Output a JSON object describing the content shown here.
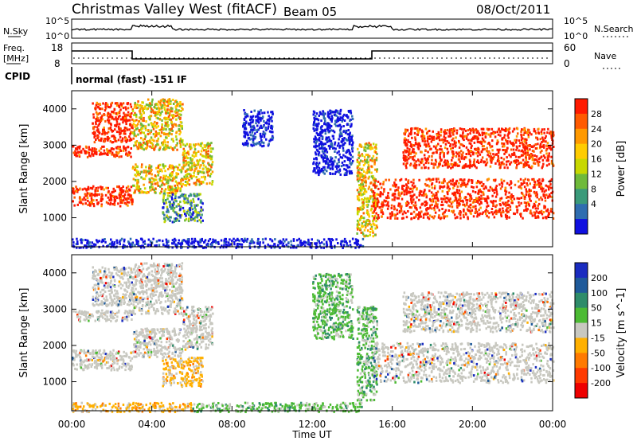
{
  "header": {
    "title": "Christmas Valley West (fitACF)",
    "beam": "Beam 05",
    "date": "08/Oct/2011"
  },
  "noise_panel": {
    "left_label": "N.Sky",
    "left_ticks": [
      "10^5",
      "10^0"
    ],
    "right_label": "N.Search",
    "right_ticks": [
      "10^5",
      "10^0"
    ]
  },
  "freq_panel": {
    "left_label_line1": "Freq.",
    "left_label_line2": "[MHz]",
    "left_ticks": [
      "18",
      "8"
    ],
    "right_label": "Nave",
    "right_ticks": [
      "60",
      "0"
    ]
  },
  "cpid_panel": {
    "label": "CPID",
    "mode_text": "normal (fast) -151 IF"
  },
  "x_axis": {
    "label": "Time UT",
    "ticks": [
      "00:00",
      "04:00",
      "08:00",
      "12:00",
      "16:00",
      "20:00",
      "00:00"
    ]
  },
  "chart_data": [
    {
      "type": "heatmap",
      "name": "power",
      "ylabel": "Slant Range [km]",
      "yticks": [
        "4000",
        "3000",
        "2000",
        "1000"
      ],
      "ylim": [
        200,
        4500
      ],
      "xlim": [
        "00:00",
        "24:00"
      ],
      "colorbar": {
        "label": "Power [dB]",
        "ticks": [
          "28",
          "24",
          "20",
          "16",
          "12",
          "8",
          "4"
        ],
        "colors": [
          "#ff1a00",
          "#ff5a00",
          "#ff9900",
          "#ffcc00",
          "#c8d800",
          "#6fba3a",
          "#3a9a7a",
          "#2f6db0",
          "#1010e0"
        ]
      },
      "regions": [
        {
          "t0": 0.0,
          "t1": 3.0,
          "r0": 1350,
          "r1": 1900,
          "level": "high"
        },
        {
          "t0": 0.0,
          "t1": 3.0,
          "r0": 2700,
          "r1": 3000,
          "level": "high"
        },
        {
          "t0": 1.0,
          "t1": 3.0,
          "r0": 3100,
          "r1": 4200,
          "level": "high"
        },
        {
          "t0": 3.0,
          "t1": 5.5,
          "r0": 1700,
          "r1": 2500,
          "level": "mid"
        },
        {
          "t0": 3.0,
          "t1": 5.5,
          "r0": 2900,
          "r1": 4300,
          "level": "mid"
        },
        {
          "t0": 4.5,
          "t1": 6.5,
          "r0": 900,
          "r1": 1700,
          "level": "low"
        },
        {
          "t0": 5.5,
          "t1": 7.0,
          "r0": 1900,
          "r1": 3100,
          "level": "mid"
        },
        {
          "t0": 8.5,
          "t1": 10.0,
          "r0": 3000,
          "r1": 4000,
          "level": "vlow"
        },
        {
          "t0": 12.0,
          "t1": 14.0,
          "r0": 2200,
          "r1": 4000,
          "level": "vlow"
        },
        {
          "t0": 0.0,
          "t1": 14.5,
          "r0": 200,
          "r1": 450,
          "level": "vlow"
        },
        {
          "t0": 14.2,
          "t1": 15.2,
          "r0": 500,
          "r1": 3100,
          "level": "mid"
        },
        {
          "t0": 15.0,
          "t1": 24.0,
          "r0": 1000,
          "r1": 2100,
          "level": "high"
        },
        {
          "t0": 16.5,
          "t1": 24.0,
          "r0": 2400,
          "r1": 3500,
          "level": "high"
        }
      ]
    },
    {
      "type": "heatmap",
      "name": "velocity",
      "ylabel": "Slant Range [km]",
      "yticks": [
        "4000",
        "3000",
        "2000",
        "1000"
      ],
      "ylim": [
        200,
        4500
      ],
      "xlim": [
        "00:00",
        "24:00"
      ],
      "colorbar": {
        "label": "Velocity [m s^-1]",
        "ticks": [
          "200",
          "100",
          "50",
          "15",
          "-15",
          "-50",
          "-100",
          "-200"
        ],
        "colors": [
          "#1a2cc0",
          "#1f5a9a",
          "#2e8c6a",
          "#4cbb34",
          "#c8c8c0",
          "#ffb000",
          "#ff7a00",
          "#ff3a00",
          "#ee0000"
        ]
      },
      "regions": [
        {
          "t0": 0.0,
          "t1": 3.0,
          "r0": 1350,
          "r1": 1900,
          "level": "zero"
        },
        {
          "t0": 0.0,
          "t1": 3.0,
          "r0": 2700,
          "r1": 3000,
          "level": "zero"
        },
        {
          "t0": 1.0,
          "t1": 3.0,
          "r0": 3100,
          "r1": 4200,
          "level": "zero"
        },
        {
          "t0": 3.0,
          "t1": 5.5,
          "r0": 1700,
          "r1": 2500,
          "level": "zero"
        },
        {
          "t0": 3.0,
          "t1": 5.5,
          "r0": 2900,
          "r1": 4300,
          "level": "zero"
        },
        {
          "t0": 4.5,
          "t1": 6.5,
          "r0": 900,
          "r1": 1700,
          "level": "neg"
        },
        {
          "t0": 5.5,
          "t1": 7.0,
          "r0": 1900,
          "r1": 3100,
          "level": "zero"
        },
        {
          "t0": 12.0,
          "t1": 14.0,
          "r0": 2200,
          "r1": 4000,
          "level": "pos"
        },
        {
          "t0": 6.0,
          "t1": 14.5,
          "r0": 200,
          "r1": 450,
          "level": "pos"
        },
        {
          "t0": 0.0,
          "t1": 6.0,
          "r0": 200,
          "r1": 450,
          "level": "neg"
        },
        {
          "t0": 14.2,
          "t1": 15.2,
          "r0": 500,
          "r1": 3100,
          "level": "pos"
        },
        {
          "t0": 15.0,
          "t1": 24.0,
          "r0": 1000,
          "r1": 2100,
          "level": "zero"
        },
        {
          "t0": 16.5,
          "t1": 24.0,
          "r0": 2400,
          "r1": 3500,
          "level": "zero"
        }
      ]
    }
  ]
}
